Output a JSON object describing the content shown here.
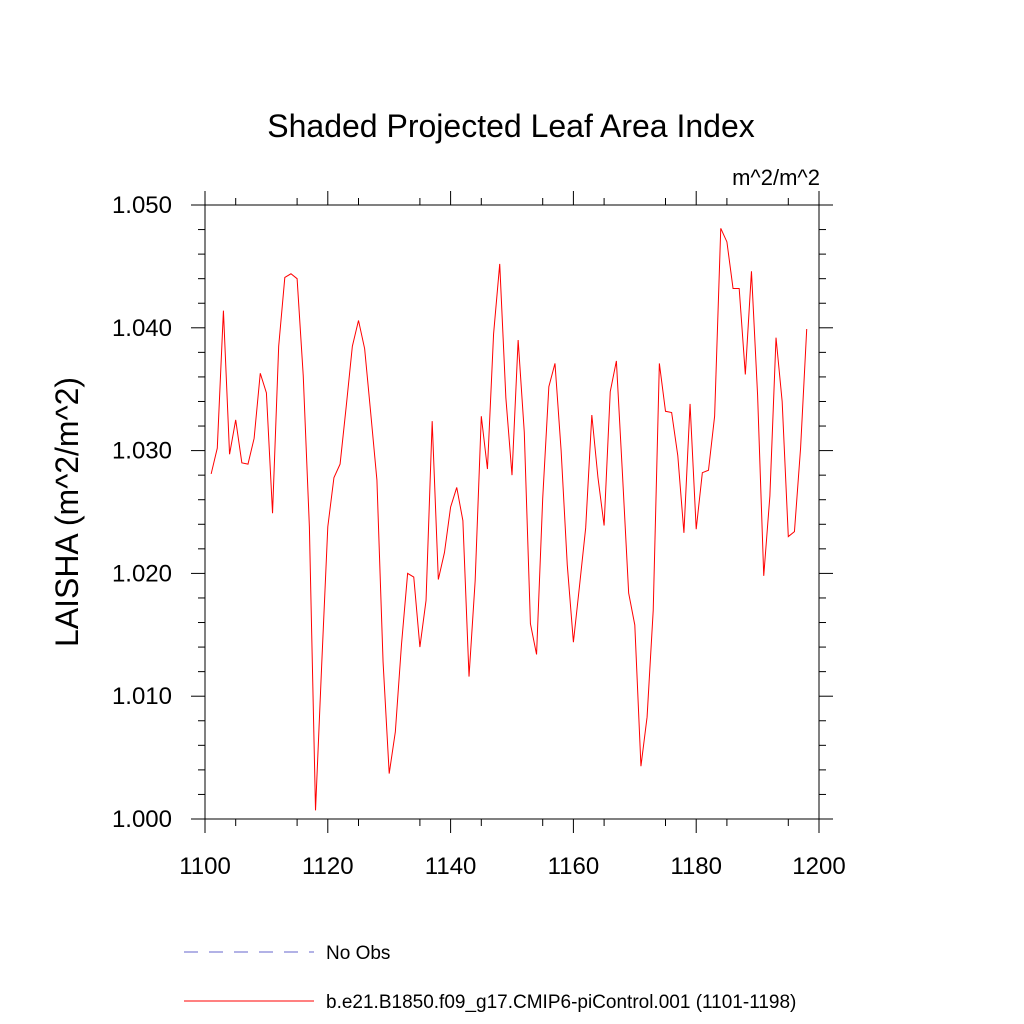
{
  "chart_data": {
    "type": "line",
    "title": "Shaded Projected Leaf Area Index",
    "units_label": "m^2/m^2",
    "ylabel": "LAISHA  (m^2/m^2)",
    "xlabel": "",
    "xlim": [
      1100,
      1200
    ],
    "ylim": [
      1.0,
      1.05
    ],
    "x_ticks": [
      "1100",
      "1120",
      "1140",
      "1160",
      "1180",
      "1200"
    ],
    "y_ticks": [
      "1.000",
      "1.010",
      "1.020",
      "1.030",
      "1.040",
      "1.050"
    ],
    "colors": {
      "series": "#ff0000",
      "obs": "#6666cc"
    },
    "series": [
      {
        "name": "b.e21.B1850.f09_g17.CMIP6-piControl.001 (1101-1198)",
        "x_start": 1101,
        "values": [
          1.0281,
          1.0302,
          1.0414,
          1.0297,
          1.0325,
          1.029,
          1.0289,
          1.031,
          1.0363,
          1.0347,
          1.0249,
          1.0385,
          1.0441,
          1.0444,
          1.044,
          1.0361,
          1.0238,
          1.0007,
          1.0125,
          1.0238,
          1.0278,
          1.0289,
          1.0336,
          1.0385,
          1.0406,
          1.0383,
          1.033,
          1.0276,
          1.0128,
          1.0037,
          1.0071,
          1.0142,
          1.02,
          1.0197,
          1.014,
          1.0178,
          1.0324,
          1.0195,
          1.0217,
          1.0254,
          1.027,
          1.0243,
          1.0116,
          1.0194,
          1.0328,
          1.0285,
          1.0395,
          1.0452,
          1.0343,
          1.028,
          1.039,
          1.0315,
          1.0159,
          1.0134,
          1.0261,
          1.0352,
          1.0371,
          1.03,
          1.0207,
          1.0144,
          1.019,
          1.0237,
          1.0329,
          1.0278,
          1.0239,
          1.0348,
          1.0373,
          1.028,
          1.0184,
          1.0158,
          1.0043,
          1.0083,
          1.017,
          1.0371,
          1.0332,
          1.0331,
          1.0296,
          1.0233,
          1.0338,
          1.0236,
          1.0282,
          1.0284,
          1.0328,
          1.0481,
          1.047,
          1.0432,
          1.0432,
          1.0362,
          1.0446,
          1.0345,
          1.0198,
          1.0263,
          1.0392,
          1.034,
          1.023,
          1.0234,
          1.0302,
          1.0399
        ]
      }
    ],
    "legend": [
      {
        "label": "No Obs",
        "style": "dashed"
      },
      {
        "label": "b.e21.B1850.f09_g17.CMIP6-piControl.001 (1101-1198)",
        "style": "solid"
      }
    ]
  }
}
